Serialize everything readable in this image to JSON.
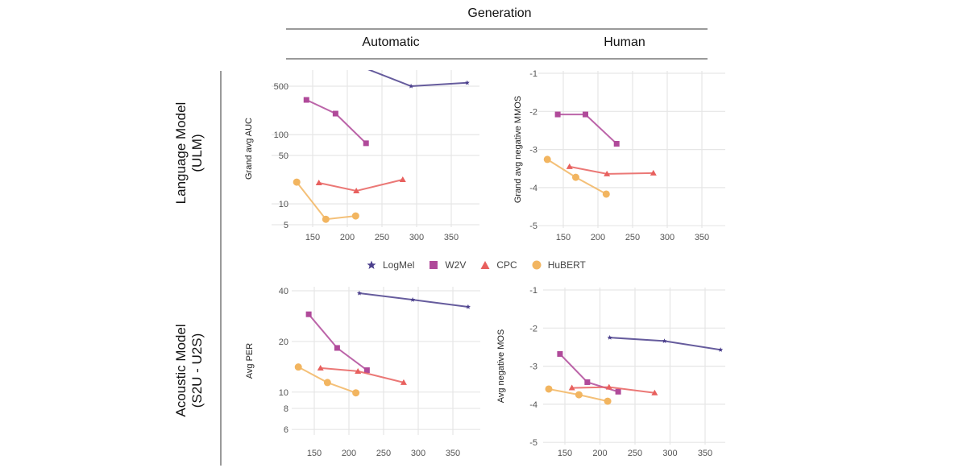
{
  "header": {
    "title": "Generation",
    "columns": [
      "Automatic",
      "Human"
    ],
    "rows": [
      "Language Model\n(ULM)",
      "Acoustic Model\n(S2U - U2S)"
    ],
    "row_line1": [
      "Language Model",
      "Acoustic Model"
    ],
    "row_line2": [
      "(ULM)",
      "(S2U - U2S)"
    ]
  },
  "legend": {
    "items": [
      {
        "name": "LogMel",
        "marker": "star",
        "color": "#4b3f8c"
      },
      {
        "name": "W2V",
        "marker": "square",
        "color": "#b04a9a"
      },
      {
        "name": "CPC",
        "marker": "triangle",
        "color": "#e8605e"
      },
      {
        "name": "HuBERT",
        "marker": "circle",
        "color": "#f2b560"
      }
    ]
  },
  "chart_data": [
    {
      "id": "ulm-automatic",
      "type": "line",
      "title": "",
      "xlabel": "",
      "ylabel": "Grand avg AUC",
      "yscale": "log",
      "xlim": [
        120,
        380
      ],
      "ylim": [
        4.5,
        700
      ],
      "xticks": [
        150,
        200,
        250,
        300,
        350
      ],
      "yticks": [
        5,
        10,
        50,
        100,
        500
      ],
      "grid": true,
      "series": [
        {
          "name": "LogMel",
          "x": [
            215,
            292,
            373
          ],
          "y": [
            1000,
            500,
            560
          ]
        },
        {
          "name": "W2V",
          "x": [
            141,
            183,
            227
          ],
          "y": [
            317,
            201,
            75
          ]
        },
        {
          "name": "CPC",
          "x": [
            159,
            213,
            280
          ],
          "y": [
            20.1,
            15.4,
            22.4
          ]
        },
        {
          "name": "HuBERT",
          "x": [
            127,
            169,
            212
          ],
          "y": [
            20.6,
            6.0,
            6.7
          ]
        }
      ]
    },
    {
      "id": "ulm-human",
      "type": "line",
      "title": "",
      "xlabel": "",
      "ylabel": "Grand avg negative MMOS",
      "yscale": "linear",
      "xlim": [
        120,
        380
      ],
      "ylim": [
        -5,
        -1
      ],
      "xticks": [
        150,
        200,
        250,
        300,
        350
      ],
      "yticks": [
        -5,
        -4,
        -3,
        -2,
        -1
      ],
      "grid": true,
      "series": [
        {
          "name": "LogMel",
          "x": [],
          "y": []
        },
        {
          "name": "W2V",
          "x": [
            142,
            182,
            227
          ],
          "y": [
            -2.08,
            -2.08,
            -2.85
          ]
        },
        {
          "name": "CPC",
          "x": [
            159,
            213,
            280
          ],
          "y": [
            -3.45,
            -3.64,
            -3.62
          ]
        },
        {
          "name": "HuBERT",
          "x": [
            127,
            168,
            212
          ],
          "y": [
            -3.26,
            -3.73,
            -4.17
          ]
        }
      ]
    },
    {
      "id": "am-automatic",
      "type": "line",
      "title": "",
      "xlabel": "",
      "ylabel": "Avg PER",
      "yscale": "log",
      "xlim": [
        120,
        380
      ],
      "ylim": [
        5.3,
        42
      ],
      "xticks": [
        150,
        200,
        250,
        300,
        350
      ],
      "yticks": [
        6,
        8,
        10,
        20,
        40
      ],
      "grid": true,
      "series": [
        {
          "name": "LogMel",
          "x": [
            215,
            292,
            372
          ],
          "y": [
            38.7,
            35.4,
            32.1
          ]
        },
        {
          "name": "W2V",
          "x": [
            142,
            183,
            226
          ],
          "y": [
            29.0,
            18.3,
            13.5
          ]
        },
        {
          "name": "CPC",
          "x": [
            159,
            213,
            279
          ],
          "y": [
            13.9,
            13.3,
            11.4
          ]
        },
        {
          "name": "HuBERT",
          "x": [
            127,
            169,
            210
          ],
          "y": [
            14.1,
            11.4,
            9.9
          ]
        }
      ]
    },
    {
      "id": "am-human",
      "type": "line",
      "title": "",
      "xlabel": "",
      "ylabel": "Avg negative MOS",
      "yscale": "linear",
      "xlim": [
        120,
        380
      ],
      "ylim": [
        -5,
        -1
      ],
      "xticks": [
        150,
        200,
        250,
        300,
        350
      ],
      "yticks": [
        -5,
        -4,
        -3,
        -2,
        -1
      ],
      "grid": true,
      "series": [
        {
          "name": "LogMel",
          "x": [
            214,
            292,
            372
          ],
          "y": [
            -2.25,
            -2.34,
            -2.57
          ]
        },
        {
          "name": "W2V",
          "x": [
            143,
            182,
            226
          ],
          "y": [
            -2.68,
            -3.42,
            -3.67
          ]
        },
        {
          "name": "CPC",
          "x": [
            160,
            213,
            278
          ],
          "y": [
            -3.57,
            -3.55,
            -3.7
          ]
        },
        {
          "name": "HuBERT",
          "x": [
            127,
            170,
            211
          ],
          "y": [
            -3.6,
            -3.75,
            -3.92
          ]
        }
      ]
    }
  ]
}
